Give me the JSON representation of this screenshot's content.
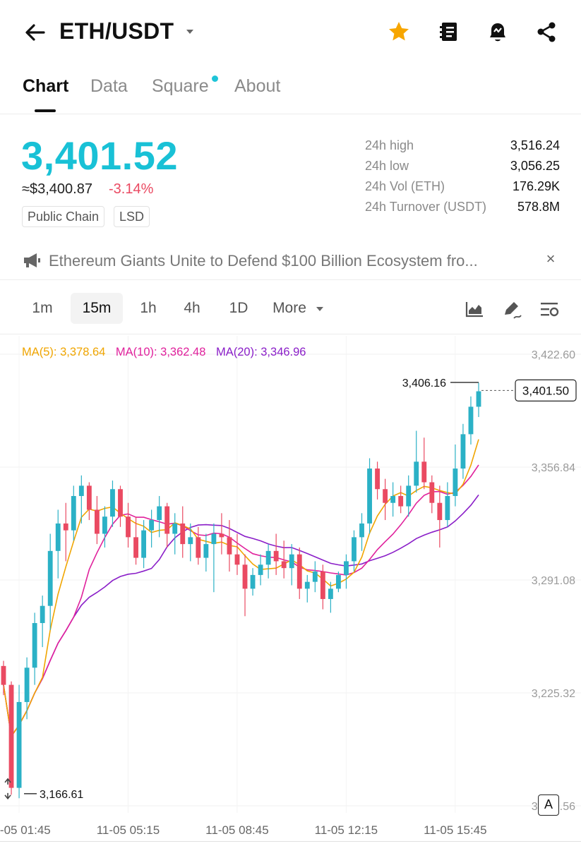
{
  "header": {
    "pair": "ETH/USDT",
    "icons": [
      "back-arrow-icon",
      "chevron-down-icon",
      "star-icon",
      "notebook-icon",
      "price-alert-bell-icon",
      "share-icon"
    ],
    "favorite_color": "#f7a600"
  },
  "tabs": [
    {
      "label": "Chart",
      "active": true
    },
    {
      "label": "Data",
      "active": false
    },
    {
      "label": "Square",
      "active": false,
      "badge_dot": true
    },
    {
      "label": "About",
      "active": false
    }
  ],
  "price": {
    "last": "3,401.52",
    "fiat": "≈$3,400.87",
    "change": "-3.14%",
    "tags": [
      "Public Chain",
      "LSD"
    ],
    "accent_color": "#19c1d6",
    "down_color": "#ea4a62"
  },
  "stats": [
    {
      "label": "24h high",
      "value": "3,516.24"
    },
    {
      "label": "24h low",
      "value": "3,056.25"
    },
    {
      "label": "24h Vol (ETH)",
      "value": "176.29K"
    },
    {
      "label": "24h Turnover (USDT)",
      "value": "578.8M"
    }
  ],
  "news": {
    "icon": "megaphone-icon",
    "text": "Ethereum Giants Unite to Defend $100 Billion Ecosystem fro...",
    "close": "×"
  },
  "intervals": {
    "items": [
      "1m",
      "15m",
      "1h",
      "4h",
      "1D",
      "More"
    ],
    "active": "15m",
    "tools": [
      "chart-type-icon",
      "drawing-tool-icon",
      "indicator-settings-icon"
    ]
  },
  "ma": [
    {
      "label": "MA(5): 3,378.64",
      "color": "#f0a500"
    },
    {
      "label": "MA(10): 3,362.48",
      "color": "#e0219c"
    },
    {
      "label": "MA(20): 3,346.96",
      "color": "#8a1ec8"
    }
  ],
  "chart": {
    "y_ticks": [
      "3,422.60",
      "3,356.84",
      "3,291.08",
      "3,225.32",
      "3,159.56"
    ],
    "x_ticks": [
      "11-05 01:45",
      "11-05 05:15",
      "11-05 08:45",
      "11-05 12:15",
      "11-05 15:45"
    ],
    "current_price_label": "3,401.50",
    "high_marker": "3,406.16",
    "low_marker": "3,166.61",
    "auto_label": "A"
  },
  "chart_data": {
    "type": "candlestick",
    "interval": "15m",
    "y_ticks": [
      3422.6,
      3356.84,
      3291.08,
      3225.32,
      3159.56
    ],
    "x_ticks": [
      "11-05 01:45",
      "11-05 05:15",
      "11-05 08:45",
      "11-05 12:15",
      "11-05 15:45"
    ],
    "up_color": "#2bb1c6",
    "down_color": "#ea4a62",
    "candles": [
      [
        3241,
        3244,
        3224,
        3230
      ],
      [
        3230,
        3232,
        3166,
        3170
      ],
      [
        3170,
        3230,
        3164,
        3220
      ],
      [
        3220,
        3246,
        3210,
        3240
      ],
      [
        3240,
        3272,
        3230,
        3266
      ],
      [
        3266,
        3282,
        3252,
        3276
      ],
      [
        3276,
        3318,
        3262,
        3308
      ],
      [
        3308,
        3332,
        3292,
        3324
      ],
      [
        3324,
        3336,
        3302,
        3320
      ],
      [
        3320,
        3346,
        3314,
        3340
      ],
      [
        3340,
        3352,
        3324,
        3346
      ],
      [
        3346,
        3348,
        3326,
        3332
      ],
      [
        3332,
        3340,
        3312,
        3318
      ],
      [
        3318,
        3334,
        3310,
        3328
      ],
      [
        3328,
        3349,
        3322,
        3344
      ],
      [
        3344,
        3346,
        3322,
        3328
      ],
      [
        3328,
        3336,
        3310,
        3316
      ],
      [
        3316,
        3328,
        3300,
        3304
      ],
      [
        3304,
        3326,
        3298,
        3320
      ],
      [
        3320,
        3332,
        3310,
        3326
      ],
      [
        3326,
        3340,
        3316,
        3334
      ],
      [
        3334,
        3336,
        3310,
        3318
      ],
      [
        3318,
        3330,
        3306,
        3324
      ],
      [
        3324,
        3334,
        3304,
        3312
      ],
      [
        3312,
        3324,
        3302,
        3316
      ],
      [
        3316,
        3322,
        3300,
        3304
      ],
      [
        3304,
        3318,
        3296,
        3312
      ],
      [
        3312,
        3324,
        3284,
        3318
      ],
      [
        3318,
        3330,
        3306,
        3316
      ],
      [
        3316,
        3326,
        3296,
        3306
      ],
      [
        3306,
        3318,
        3294,
        3300
      ],
      [
        3300,
        3306,
        3270,
        3286
      ],
      [
        3286,
        3298,
        3282,
        3294
      ],
      [
        3294,
        3306,
        3288,
        3300
      ],
      [
        3300,
        3312,
        3292,
        3308
      ],
      [
        3308,
        3318,
        3294,
        3302
      ],
      [
        3302,
        3314,
        3292,
        3298
      ],
      [
        3298,
        3312,
        3288,
        3306
      ],
      [
        3306,
        3310,
        3280,
        3286
      ],
      [
        3286,
        3294,
        3278,
        3290
      ],
      [
        3290,
        3302,
        3284,
        3296
      ],
      [
        3296,
        3300,
        3274,
        3280
      ],
      [
        3280,
        3290,
        3272,
        3286
      ],
      [
        3286,
        3296,
        3284,
        3294
      ],
      [
        3294,
        3306,
        3286,
        3302
      ],
      [
        3302,
        3320,
        3296,
        3316
      ],
      [
        3316,
        3330,
        3308,
        3324
      ],
      [
        3324,
        3362,
        3318,
        3356
      ],
      [
        3356,
        3360,
        3338,
        3344
      ],
      [
        3344,
        3350,
        3326,
        3336
      ],
      [
        3336,
        3348,
        3328,
        3340
      ],
      [
        3340,
        3346,
        3330,
        3334
      ],
      [
        3334,
        3352,
        3328,
        3346
      ],
      [
        3346,
        3378,
        3342,
        3360
      ],
      [
        3360,
        3374,
        3344,
        3348
      ],
      [
        3348,
        3352,
        3330,
        3336
      ],
      [
        3336,
        3346,
        3310,
        3326
      ],
      [
        3326,
        3348,
        3322,
        3340
      ],
      [
        3340,
        3370,
        3334,
        3356
      ],
      [
        3356,
        3382,
        3350,
        3376
      ],
      [
        3376,
        3398,
        3370,
        3392
      ],
      [
        3392,
        3406,
        3386,
        3401
      ]
    ],
    "ma5_label": "MA(5): 3,378.64",
    "ma10_label": "MA(10): 3,362.48",
    "ma20_label": "MA(20): 3,346.96",
    "last_price": 3401.5,
    "high_marker": 3406.16,
    "low_marker": 3166.61
  }
}
